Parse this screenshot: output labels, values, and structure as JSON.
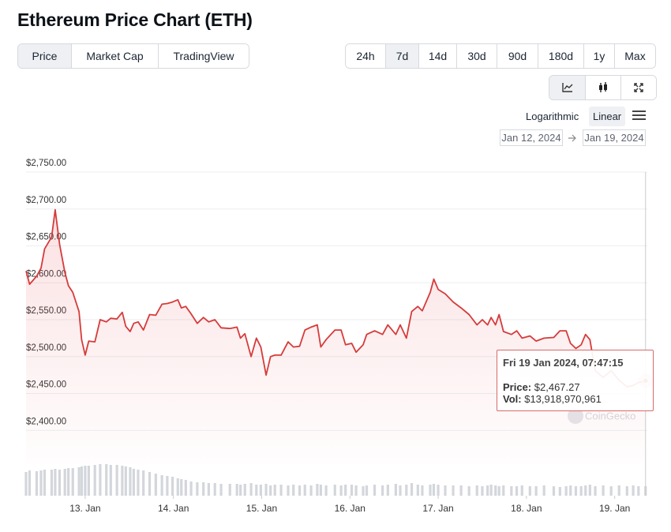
{
  "header": {
    "title": "Ethereum Price Chart (ETH)"
  },
  "tabs": [
    "Price",
    "Market Cap",
    "TradingView"
  ],
  "ranges": [
    "24h",
    "7d",
    "14d",
    "30d",
    "90d",
    "180d",
    "1y",
    "Max"
  ],
  "scale_options": [
    "Logarithmic",
    "Linear"
  ],
  "date_range": {
    "from": "Jan 12, 2024",
    "to": "Jan 19, 2024"
  },
  "tooltip": {
    "date": "Fri 19 Jan 2024, 07:47:15",
    "price_label": "Price:",
    "price": "$2,467.27",
    "vol_label": "Vol:",
    "vol": "$13,918,970,961"
  },
  "chart_data": {
    "type": "line",
    "watermark": "CoinGecko",
    "color": "#d63b3b",
    "grid": true,
    "xlim": [
      12.33,
      19.37
    ],
    "ylim": [
      2380,
      2750
    ],
    "xticks": [
      {
        "value": 13,
        "label": "13. Jan"
      },
      {
        "value": 14,
        "label": "14. Jan"
      },
      {
        "value": 15,
        "label": "15. Jan"
      },
      {
        "value": 16,
        "label": "16. Jan"
      },
      {
        "value": 17,
        "label": "17. Jan"
      },
      {
        "value": 18,
        "label": "18. Jan"
      },
      {
        "value": 19,
        "label": "19. Jan"
      }
    ],
    "yticks": [
      {
        "value": 2400,
        "label": "$2,400.00"
      },
      {
        "value": 2450,
        "label": "$2,450.00"
      },
      {
        "value": 2500,
        "label": "$2,500.00"
      },
      {
        "value": 2550,
        "label": "$2,550.00"
      },
      {
        "value": 2600,
        "label": "$2,600.00"
      },
      {
        "value": 2650,
        "label": "$2,650.00"
      },
      {
        "value": 2700,
        "label": "$2,700.00"
      },
      {
        "value": 2750,
        "label": "$2,750.00"
      }
    ],
    "x": [
      12.33,
      12.37,
      12.45,
      12.5,
      12.54,
      12.62,
      12.66,
      12.71,
      12.77,
      12.81,
      12.86,
      12.93,
      12.96,
      13.0,
      13.04,
      13.11,
      13.17,
      13.24,
      13.29,
      13.36,
      13.42,
      13.46,
      13.51,
      13.55,
      13.6,
      13.66,
      13.73,
      13.8,
      13.87,
      13.93,
      13.99,
      14.05,
      14.09,
      14.14,
      14.2,
      14.27,
      14.34,
      14.4,
      14.47,
      14.54,
      14.64,
      14.72,
      14.76,
      14.81,
      14.88,
      14.94,
      14.99,
      15.05,
      15.1,
      15.15,
      15.22,
      15.3,
      15.36,
      15.43,
      15.49,
      15.56,
      15.63,
      15.67,
      15.73,
      15.83,
      15.9,
      15.95,
      16.02,
      16.07,
      16.15,
      16.19,
      16.28,
      16.37,
      16.43,
      16.52,
      16.57,
      16.64,
      16.7,
      16.77,
      16.82,
      16.91,
      16.95,
      17.0,
      17.08,
      17.17,
      17.26,
      17.35,
      17.44,
      17.5,
      17.56,
      17.6,
      17.65,
      17.69,
      17.74,
      17.83,
      17.89,
      17.95,
      18.04,
      18.11,
      18.2,
      18.31,
      18.38,
      18.45,
      18.5,
      18.56,
      18.62,
      18.67,
      18.72,
      18.78,
      18.87,
      18.96,
      19.05,
      19.14,
      19.21,
      19.27,
      19.35
    ],
    "values": [
      2616,
      2598,
      2609,
      2620,
      2646,
      2662,
      2699,
      2652,
      2614,
      2596,
      2587,
      2561,
      2523,
      2502,
      2521,
      2520,
      2550,
      2547,
      2552,
      2551,
      2560,
      2541,
      2534,
      2545,
      2547,
      2536,
      2557,
      2556,
      2571,
      2572,
      2574,
      2577,
      2566,
      2568,
      2558,
      2545,
      2553,
      2547,
      2550,
      2539,
      2538,
      2540,
      2525,
      2531,
      2500,
      2525,
      2513,
      2475,
      2500,
      2502,
      2502,
      2520,
      2513,
      2514,
      2536,
      2540,
      2543,
      2513,
      2523,
      2536,
      2536,
      2516,
      2518,
      2506,
      2516,
      2530,
      2535,
      2530,
      2543,
      2530,
      2543,
      2525,
      2561,
      2568,
      2562,
      2587,
      2605,
      2591,
      2585,
      2574,
      2566,
      2557,
      2543,
      2550,
      2543,
      2553,
      2543,
      2557,
      2534,
      2530,
      2535,
      2525,
      2528,
      2521,
      2525,
      2526,
      2535,
      2535,
      2518,
      2511,
      2516,
      2530,
      2523,
      2481,
      2472,
      2481,
      2468,
      2459,
      2461,
      2465,
      2467.27
    ],
    "volume": [
      30,
      32,
      31,
      32,
      33,
      33,
      34,
      33,
      34,
      35,
      35,
      36,
      37,
      38,
      38,
      39,
      40,
      40,
      39,
      39,
      38,
      37,
      36,
      34,
      33,
      32,
      30,
      28,
      26,
      25,
      24,
      22,
      21,
      20,
      18,
      17,
      17,
      16,
      16,
      15,
      15,
      15,
      14,
      15,
      16,
      14,
      14,
      15,
      13,
      14,
      14,
      13,
      14,
      13,
      14,
      13,
      15,
      14,
      13,
      14,
      13,
      14,
      14,
      13,
      12,
      13,
      14,
      13,
      14,
      15,
      13,
      14,
      16,
      14,
      13,
      14,
      15,
      14,
      13,
      13,
      13,
      12,
      13,
      12,
      13,
      14,
      13,
      12,
      13,
      12,
      12,
      13,
      12,
      12,
      13,
      12,
      11,
      12,
      13,
      12,
      12,
      13,
      14,
      12,
      13,
      12,
      13,
      12,
      13,
      12,
      12
    ]
  }
}
